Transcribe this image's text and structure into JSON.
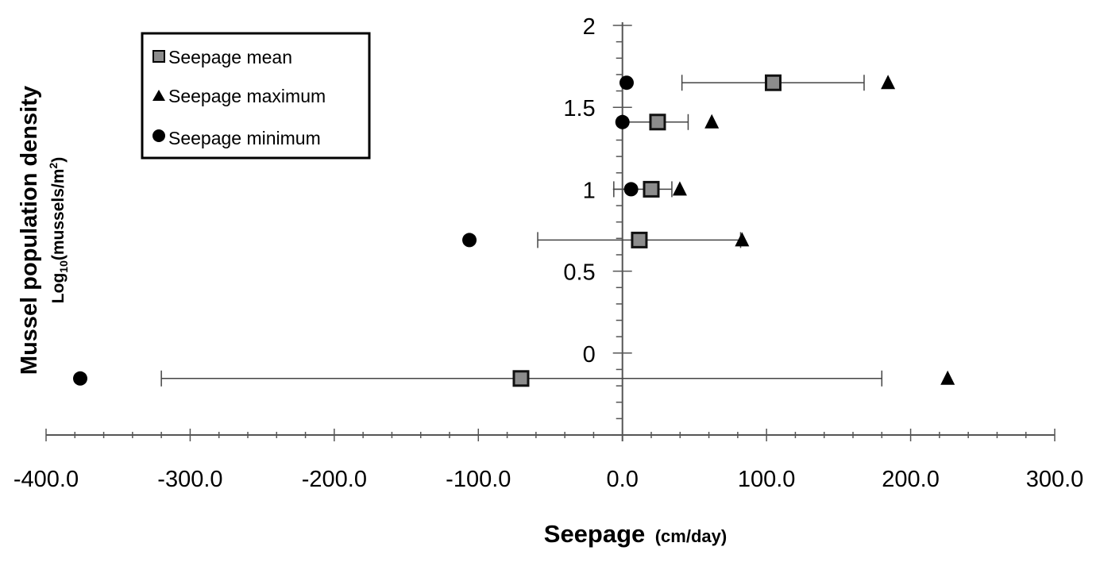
{
  "chart_data": {
    "type": "scatter",
    "title": "",
    "xlabel": "Seepage",
    "xlabel_unit": "(cm/day)",
    "ylabel": "Mussel population density",
    "ylabel_sub_prefix": "Log",
    "ylabel_sub_subscript": "10",
    "ylabel_sub_unit": "(mussels/m",
    "ylabel_sub_sup": "2",
    "ylabel_sub_close": ")",
    "xlim": [
      -400,
      300
    ],
    "ylim": [
      -0.5,
      2
    ],
    "x_ticks": [
      -400,
      -300,
      -200,
      -100,
      0,
      100,
      200,
      300
    ],
    "x_tick_labels": [
      "-400.0",
      "-300.0",
      "-200.0",
      "-100.0",
      "0.0",
      "100.0",
      "200.0",
      "300.0"
    ],
    "y_ticks": [
      0,
      0.5,
      1,
      1.5,
      2
    ],
    "y_tick_labels": [
      "0",
      "0.5",
      "1",
      "1.5",
      "2"
    ],
    "grid": false,
    "legend_position": "top-left",
    "y": [
      1.65,
      1.41,
      1.0,
      0.69,
      -0.155
    ],
    "series": [
      {
        "name": "Seepage mean",
        "marker": "square",
        "color": "#8c8c8c",
        "x": [
          104.6,
          24.4,
          20.0,
          11.7,
          -70.4
        ],
        "error_low": [
          41.3,
          0.0,
          -6.0,
          -58.8,
          -320.0
        ],
        "error_high": [
          167.7,
          45.6,
          34.3,
          82.0,
          180.0
        ]
      },
      {
        "name": "Seepage maximum",
        "marker": "triangle",
        "color": "#000000",
        "x": [
          184.3,
          62.0,
          39.8,
          83.0,
          225.7
        ]
      },
      {
        "name": "Seepage minimum",
        "marker": "circle",
        "color": "#000000",
        "x": [
          2.9,
          0.0,
          6.0,
          -106.2,
          -376.3
        ]
      }
    ]
  }
}
